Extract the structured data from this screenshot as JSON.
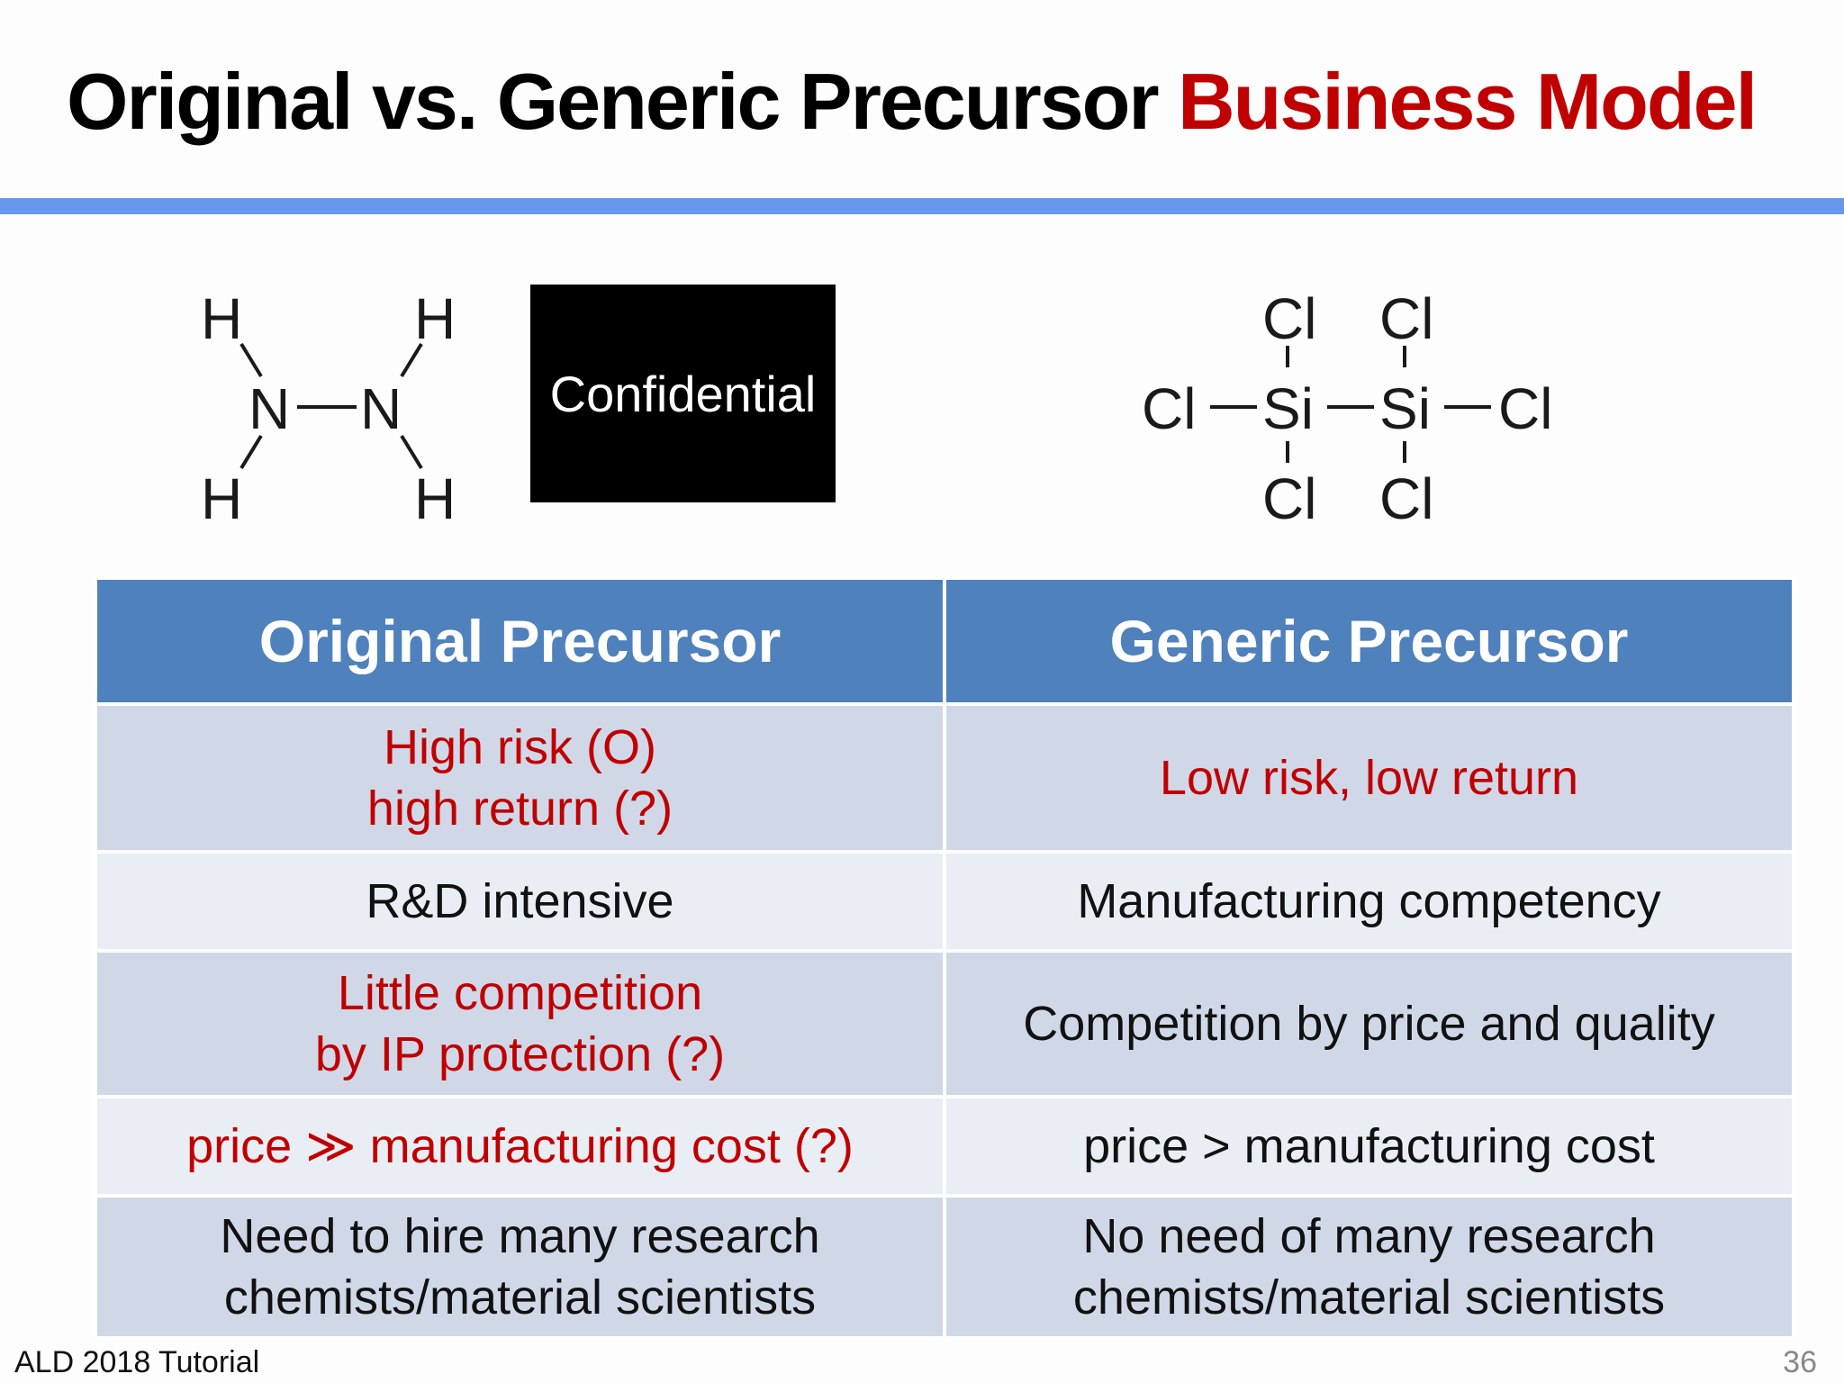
{
  "slide": {
    "title_main": "Original vs. Generic Precursor ",
    "title_accent": "Business Model",
    "accent_color": "#c00000",
    "rule_color": "#6699ee"
  },
  "molecules": {
    "hydrazine": {
      "atoms": [
        "H",
        "H",
        "N",
        "N",
        "H",
        "H"
      ]
    },
    "confidential_label": "Confidential",
    "hexachlorodisilane": {
      "atoms": [
        "Cl",
        "Cl",
        "Cl",
        "Si",
        "Si",
        "Cl",
        "Cl",
        "Cl"
      ]
    }
  },
  "table": {
    "headers": [
      "Original Precursor",
      "Generic Precursor"
    ],
    "rows": [
      {
        "left": [
          "High risk (O)",
          "high return (?)"
        ],
        "left_red": true,
        "right": [
          "Low risk, low return"
        ],
        "right_red": true
      },
      {
        "left": [
          "R&D intensive"
        ],
        "left_red": false,
        "right": [
          "Manufacturing competency"
        ],
        "right_red": false
      },
      {
        "left": [
          "Little competition",
          "by IP protection (?)"
        ],
        "left_red": true,
        "right": [
          "Competition by price and quality"
        ],
        "right_red": false
      },
      {
        "left": [
          "price ≫ manufacturing cost (?)"
        ],
        "left_red": true,
        "right": [
          "price > manufacturing cost"
        ],
        "right_red": false
      },
      {
        "left": [
          "Need to hire many research",
          "chemists/material scientists"
        ],
        "left_red": false,
        "right": [
          "No need of many research",
          "chemists/material scientists"
        ],
        "right_red": false
      }
    ]
  },
  "footer": {
    "left": "ALD 2018 Tutorial",
    "page": "36"
  }
}
